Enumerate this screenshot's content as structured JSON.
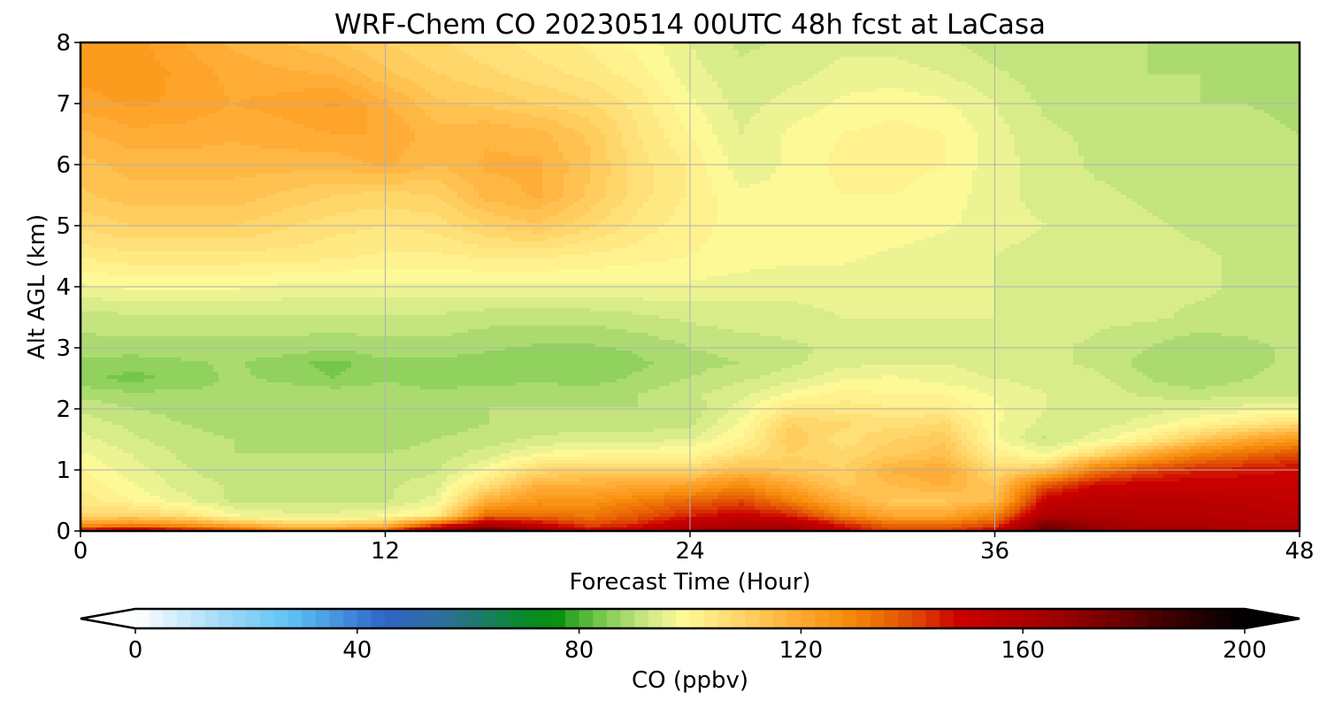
{
  "chart_data": {
    "type": "heatmap",
    "title": "WRF-Chem CO  20230514 00UTC 48h fcst at LaCasa",
    "xlabel": "Forecast Time (Hour)",
    "ylabel": "Alt AGL (km)",
    "x_ticks": [
      "0",
      "12",
      "24",
      "36",
      "48"
    ],
    "y_ticks": [
      "0",
      "1",
      "2",
      "3",
      "4",
      "5",
      "6",
      "7",
      "8"
    ],
    "xlim": [
      0,
      48
    ],
    "ylim": [
      0,
      8
    ],
    "grid": true,
    "x": [
      0,
      2,
      4,
      6,
      8,
      10,
      12,
      14,
      16,
      18,
      20,
      22,
      24,
      26,
      28,
      30,
      32,
      34,
      36,
      38,
      40,
      42,
      44,
      46,
      48
    ],
    "y": [
      0,
      0.1,
      0.25,
      0.5,
      0.75,
      1.0,
      1.25,
      1.5,
      1.75,
      2.0,
      2.25,
      2.5,
      2.75,
      3.0,
      3.5,
      4.0,
      4.5,
      5.0,
      5.5,
      6.0,
      6.5,
      7.0,
      7.5,
      8.0
    ],
    "z": [
      [
        150,
        160,
        150,
        140,
        130,
        130,
        135,
        170,
        185,
        170,
        150,
        155,
        165,
        165,
        165,
        150,
        140,
        140,
        150,
        180,
        170,
        165,
        165,
        160,
        160
      ],
      [
        125,
        128,
        125,
        118,
        112,
        112,
        115,
        140,
        160,
        150,
        140,
        145,
        155,
        160,
        160,
        145,
        135,
        135,
        140,
        175,
        165,
        160,
        160,
        158,
        158
      ],
      [
        108,
        110,
        106,
        98,
        96,
        96,
        98,
        102,
        135,
        135,
        132,
        138,
        145,
        150,
        145,
        130,
        120,
        120,
        130,
        160,
        160,
        158,
        158,
        156,
        155
      ],
      [
        104,
        100,
        96,
        92,
        92,
        92,
        92,
        96,
        118,
        125,
        125,
        130,
        135,
        140,
        130,
        118,
        112,
        112,
        115,
        150,
        155,
        155,
        155,
        154,
        152
      ],
      [
        102,
        98,
        94,
        92,
        92,
        92,
        92,
        94,
        106,
        118,
        118,
        120,
        122,
        128,
        120,
        112,
        115,
        118,
        112,
        138,
        148,
        150,
        150,
        150,
        150
      ],
      [
        100,
        96,
        93,
        91,
        91,
        91,
        91,
        92,
        98,
        108,
        110,
        110,
        108,
        115,
        112,
        110,
        118,
        120,
        108,
        112,
        132,
        140,
        145,
        146,
        148
      ],
      [
        98,
        95,
        92,
        90,
        90,
        90,
        90,
        91,
        94,
        98,
        100,
        100,
        100,
        106,
        110,
        108,
        112,
        114,
        102,
        98,
        108,
        120,
        130,
        135,
        140
      ],
      [
        96,
        93,
        91,
        90,
        89,
        89,
        89,
        90,
        91,
        93,
        94,
        94,
        95,
        100,
        112,
        106,
        110,
        112,
        98,
        92,
        96,
        102,
        112,
        120,
        125
      ],
      [
        94,
        92,
        90,
        89,
        89,
        89,
        89,
        89,
        90,
        91,
        91,
        91,
        92,
        98,
        110,
        108,
        106,
        108,
        98,
        94,
        94,
        96,
        100,
        104,
        108
      ],
      [
        92,
        90,
        89,
        88,
        89,
        89,
        89,
        89,
        90,
        90,
        90,
        90,
        91,
        96,
        104,
        104,
        103,
        103,
        98,
        95,
        94,
        94,
        95,
        96,
        97
      ],
      [
        89,
        88,
        88,
        88,
        89,
        89,
        89,
        88,
        89,
        89,
        89,
        90,
        92,
        94,
        98,
        101,
        100,
        100,
        97,
        95,
        94,
        92,
        91,
        92,
        92
      ],
      [
        86,
        84,
        86,
        88,
        87,
        85,
        87,
        86,
        86,
        87,
        86,
        88,
        90,
        92,
        94,
        97,
        98,
        96,
        95,
        94,
        93,
        90,
        88,
        90,
        91
      ],
      [
        87,
        86,
        87,
        88,
        86,
        84,
        87,
        87,
        86,
        85,
        85,
        87,
        89,
        90,
        92,
        94,
        95,
        95,
        94,
        93,
        92,
        89,
        88,
        89,
        91
      ],
      [
        89,
        89,
        89,
        89,
        89,
        88,
        89,
        89,
        88,
        87,
        87,
        88,
        90,
        91,
        92,
        93,
        94,
        94,
        94,
        93,
        92,
        90,
        88,
        89,
        91
      ],
      [
        91,
        92,
        92,
        92,
        92,
        92,
        92,
        92,
        91,
        91,
        91,
        92,
        93,
        94,
        94,
        95,
        95,
        95,
        95,
        94,
        93,
        93,
        92,
        92,
        92
      ],
      [
        97,
        98,
        98,
        98,
        97,
        97,
        97,
        97,
        97,
        97,
        97,
        97,
        97,
        96,
        96,
        96,
        95,
        95,
        95,
        94,
        94,
        93,
        93,
        92,
        92
      ],
      [
        103,
        104,
        104,
        104,
        104,
        103,
        102,
        102,
        103,
        103,
        102,
        101,
        100,
        99,
        98,
        98,
        97,
        96,
        95,
        94,
        94,
        93,
        93,
        92,
        92
      ],
      [
        108,
        110,
        110,
        110,
        108,
        106,
        105,
        106,
        110,
        112,
        108,
        104,
        101,
        99,
        98,
        99,
        99,
        98,
        96,
        95,
        94,
        93,
        92,
        91,
        92
      ],
      [
        112,
        114,
        114,
        114,
        112,
        110,
        109,
        110,
        116,
        118,
        112,
        106,
        102,
        98,
        98,
        100,
        100,
        99,
        96,
        94,
        93,
        92,
        91,
        91,
        91
      ],
      [
        114,
        116,
        116,
        116,
        116,
        116,
        118,
        115,
        118,
        118,
        113,
        106,
        102,
        96,
        98,
        101,
        101,
        100,
        96,
        94,
        92,
        92,
        91,
        91,
        90
      ],
      [
        117,
        119,
        119,
        118,
        119,
        120,
        120,
        116,
        117,
        116,
        112,
        105,
        100,
        95,
        98,
        100,
        101,
        100,
        96,
        93,
        92,
        91,
        91,
        91,
        90
      ],
      [
        121,
        123,
        122,
        120,
        121,
        123,
        118,
        113,
        112,
        110,
        108,
        104,
        98,
        94,
        96,
        98,
        99,
        98,
        95,
        92,
        91,
        91,
        90,
        90,
        89
      ],
      [
        124,
        124,
        122,
        119,
        118,
        117,
        113,
        110,
        108,
        106,
        104,
        101,
        96,
        93,
        94,
        96,
        96,
        95,
        93,
        91,
        90,
        90,
        90,
        89,
        89
      ],
      [
        125,
        124,
        120,
        117,
        115,
        113,
        110,
        108,
        106,
        104,
        102,
        99,
        95,
        92,
        93,
        94,
        94,
        93,
        91,
        90,
        90,
        90,
        89,
        89,
        89
      ]
    ],
    "colorbar": {
      "label": "CO  (ppbv)",
      "ticks": [
        "0",
        "40",
        "80",
        "120",
        "160",
        "200"
      ],
      "min": 0,
      "max": 200,
      "step": 2.5,
      "extend": "both",
      "stops": [
        {
          "v": 0,
          "c": "#ffffff"
        },
        {
          "v": 15,
          "c": "#a6dcf7"
        },
        {
          "v": 28,
          "c": "#5ec1f5"
        },
        {
          "v": 45,
          "c": "#2f64c8"
        },
        {
          "v": 55,
          "c": "#2f6e9e"
        },
        {
          "v": 62,
          "c": "#1e7a6a"
        },
        {
          "v": 70,
          "c": "#088a2a"
        },
        {
          "v": 76,
          "c": "#06900e"
        },
        {
          "v": 78,
          "c": "#2aa321"
        },
        {
          "v": 84,
          "c": "#78c94c"
        },
        {
          "v": 90,
          "c": "#b8e07a"
        },
        {
          "v": 95,
          "c": "#e4f08f"
        },
        {
          "v": 99,
          "c": "#fffa98"
        },
        {
          "v": 105,
          "c": "#ffe47d"
        },
        {
          "v": 112,
          "c": "#ffc95a"
        },
        {
          "v": 120,
          "c": "#ffa830"
        },
        {
          "v": 128,
          "c": "#f78e0c"
        },
        {
          "v": 135,
          "c": "#ea6a06"
        },
        {
          "v": 142,
          "c": "#dd3d03"
        },
        {
          "v": 148,
          "c": "#cc0000"
        },
        {
          "v": 165,
          "c": "#a10000"
        },
        {
          "v": 178,
          "c": "#6a0000"
        },
        {
          "v": 190,
          "c": "#2a0000"
        },
        {
          "v": 200,
          "c": "#000000"
        }
      ]
    }
  }
}
